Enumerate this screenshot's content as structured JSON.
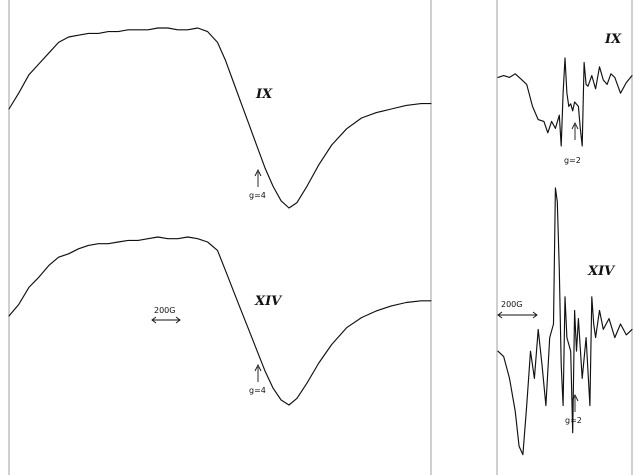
{
  "chart_data": [
    {
      "type": "line",
      "panel": "left",
      "title": "",
      "xlabel": "",
      "ylabel": "",
      "scale_bar": "200G",
      "series": [
        {
          "name": "IX",
          "marker": "g=4",
          "x": [
            0,
            10,
            20,
            30,
            40,
            50,
            60,
            70,
            80,
            90,
            100,
            110,
            120,
            130,
            140,
            150,
            160,
            170,
            180,
            190,
            200,
            210,
            218,
            226,
            234,
            242,
            250,
            258,
            266,
            274,
            282,
            290,
            300,
            312,
            325,
            340,
            355,
            370,
            385,
            400,
            415,
            425
          ],
          "y": [
            0.55,
            0.64,
            0.74,
            0.8,
            0.86,
            0.92,
            0.95,
            0.96,
            0.97,
            0.97,
            0.98,
            0.98,
            0.99,
            0.99,
            0.99,
            1.0,
            1.0,
            0.99,
            0.99,
            1.0,
            0.98,
            0.92,
            0.82,
            0.7,
            0.58,
            0.46,
            0.34,
            0.22,
            0.12,
            0.04,
            0.0,
            0.03,
            0.12,
            0.24,
            0.35,
            0.44,
            0.5,
            0.53,
            0.55,
            0.57,
            0.58,
            0.58
          ]
        },
        {
          "name": "XIV",
          "marker": "g=4",
          "x": [
            0,
            10,
            20,
            30,
            40,
            50,
            60,
            70,
            80,
            90,
            100,
            110,
            120,
            130,
            140,
            150,
            160,
            170,
            180,
            190,
            200,
            210,
            218,
            226,
            234,
            242,
            250,
            258,
            266,
            274,
            282,
            290,
            300,
            312,
            325,
            340,
            355,
            370,
            385,
            400,
            415,
            425
          ],
          "y": [
            0.53,
            0.6,
            0.7,
            0.76,
            0.83,
            0.88,
            0.9,
            0.93,
            0.95,
            0.96,
            0.96,
            0.97,
            0.98,
            0.98,
            0.99,
            1.0,
            0.99,
            0.99,
            1.0,
            0.99,
            0.97,
            0.92,
            0.8,
            0.68,
            0.56,
            0.44,
            0.32,
            0.2,
            0.1,
            0.03,
            0.0,
            0.04,
            0.13,
            0.25,
            0.36,
            0.46,
            0.52,
            0.56,
            0.59,
            0.61,
            0.62,
            0.62
          ]
        }
      ]
    },
    {
      "type": "line",
      "panel": "right",
      "title": "",
      "xlabel": "",
      "ylabel": "",
      "scale_bar": "200G",
      "series": [
        {
          "name": "IX",
          "marker": "g=2",
          "x": [
            0,
            6,
            12,
            18,
            24,
            30,
            36,
            42,
            48,
            52,
            56,
            60,
            64,
            66,
            68,
            70,
            72,
            74,
            76,
            78,
            80,
            84,
            86,
            88,
            90,
            92,
            94,
            98,
            102,
            106,
            110,
            114,
            118,
            122,
            128,
            134,
            140
          ],
          "y": [
            0.78,
            0.8,
            0.78,
            0.82,
            0.76,
            0.7,
            0.45,
            0.3,
            0.28,
            0.15,
            0.28,
            0.2,
            0.35,
            0.0,
            0.6,
            1.0,
            0.6,
            0.45,
            0.48,
            0.4,
            0.5,
            0.45,
            0.2,
            0.0,
            0.95,
            0.7,
            0.68,
            0.8,
            0.65,
            0.9,
            0.75,
            0.7,
            0.82,
            0.78,
            0.6,
            0.72,
            0.8
          ]
        },
        {
          "name": "XIV",
          "marker": "g=2",
          "x": [
            0,
            6,
            12,
            18,
            22,
            26,
            30,
            34,
            38,
            42,
            46,
            50,
            54,
            58,
            60,
            62,
            64,
            66,
            68,
            70,
            72,
            76,
            78,
            80,
            82,
            84,
            88,
            92,
            96,
            98,
            100,
            102,
            106,
            110,
            116,
            122,
            128,
            134,
            140
          ],
          "y": [
            0.4,
            0.38,
            0.3,
            0.18,
            0.05,
            0.02,
            0.2,
            0.4,
            0.3,
            0.48,
            0.35,
            0.2,
            0.45,
            0.5,
            1.0,
            0.95,
            0.7,
            0.35,
            0.2,
            0.6,
            0.45,
            0.4,
            0.1,
            0.55,
            0.4,
            0.52,
            0.3,
            0.45,
            0.2,
            0.6,
            0.5,
            0.45,
            0.55,
            0.48,
            0.52,
            0.45,
            0.5,
            0.46,
            0.48
          ]
        }
      ]
    }
  ]
}
